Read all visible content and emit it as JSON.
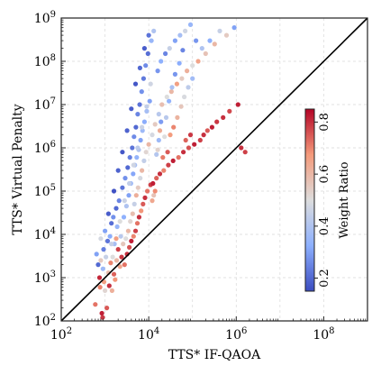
{
  "chart_data": {
    "type": "scatter",
    "title": "",
    "xlabel": "TTS* IF-QAOA",
    "ylabel": "TTS* Virtual Penalty",
    "xscale": "log",
    "yscale": "log",
    "xlim": [
      100,
      1000000000
    ],
    "ylim": [
      100,
      1000000000
    ],
    "x_ticks": [
      {
        "value": 100,
        "base": "10",
        "exp": "2"
      },
      {
        "value": 10000,
        "base": "10",
        "exp": "4"
      },
      {
        "value": 1000000,
        "base": "10",
        "exp": "6"
      },
      {
        "value": 100000000,
        "base": "10",
        "exp": "8"
      }
    ],
    "y_ticks": [
      {
        "value": 100,
        "base": "10",
        "exp": "2"
      },
      {
        "value": 1000,
        "base": "10",
        "exp": "3"
      },
      {
        "value": 10000,
        "base": "10",
        "exp": "4"
      },
      {
        "value": 100000,
        "base": "10",
        "exp": "5"
      },
      {
        "value": 1000000,
        "base": "10",
        "exp": "6"
      },
      {
        "value": 10000000,
        "base": "10",
        "exp": "7"
      },
      {
        "value": 100000000,
        "base": "10",
        "exp": "8"
      },
      {
        "value": 1000000000,
        "base": "10",
        "exp": "9"
      }
    ],
    "grid": true,
    "reference_line": "y = x",
    "colorbar": {
      "label": "Weight Ratio",
      "colormap": "coolwarm",
      "range": [
        0.15,
        0.85
      ],
      "ticks": [
        {
          "value": 0.2,
          "label": "0.2"
        },
        {
          "value": 0.4,
          "label": "0.4"
        },
        {
          "value": 0.6,
          "label": "0.6"
        },
        {
          "value": 0.8,
          "label": "0.8"
        }
      ],
      "colors": [
        "#3b4cc0",
        "#8db0fe",
        "#dddddd",
        "#f49a7b",
        "#b40426"
      ]
    },
    "points": [
      [
        600,
        240,
        0.72
      ],
      [
        640,
        3500,
        0.3
      ],
      [
        700,
        2000,
        0.2
      ],
      [
        750,
        1000,
        0.81
      ],
      [
        770,
        600,
        0.7
      ],
      [
        800,
        2500,
        0.55
      ],
      [
        850,
        150,
        0.82
      ],
      [
        880,
        120,
        0.79
      ],
      [
        900,
        1600,
        0.36
      ],
      [
        930,
        4500,
        0.24
      ],
      [
        950,
        800,
        0.66
      ],
      [
        1000,
        12000,
        0.3
      ],
      [
        1050,
        3000,
        0.45
      ],
      [
        1100,
        200,
        0.75
      ],
      [
        1150,
        7000,
        0.22
      ],
      [
        1200,
        1300,
        0.58
      ],
      [
        1250,
        650,
        0.8
      ],
      [
        1300,
        9000,
        0.32
      ],
      [
        1350,
        2200,
        0.7
      ],
      [
        1400,
        18000,
        0.21
      ],
      [
        1450,
        500,
        0.62
      ],
      [
        1500,
        3000,
        0.5
      ],
      [
        1550,
        25000,
        0.27
      ],
      [
        1600,
        1200,
        0.74
      ],
      [
        1650,
        6000,
        0.38
      ],
      [
        1700,
        900,
        0.68
      ],
      [
        1800,
        40000,
        0.2
      ],
      [
        1850,
        2500,
        0.6
      ],
      [
        1900,
        15000,
        0.35
      ],
      [
        2000,
        4500,
        0.78
      ],
      [
        2100,
        60000,
        0.25
      ],
      [
        2200,
        1800,
        0.64
      ],
      [
        2300,
        9000,
        0.42
      ],
      [
        2400,
        3000,
        0.79
      ],
      [
        2500,
        120000,
        0.22
      ],
      [
        2600,
        6000,
        0.56
      ],
      [
        2700,
        25000,
        0.33
      ],
      [
        2800,
        2000,
        0.72
      ],
      [
        2900,
        200000,
        0.27
      ],
      [
        3000,
        8000,
        0.5
      ],
      [
        3100,
        45000,
        0.4
      ],
      [
        3200,
        3500,
        0.8
      ],
      [
        3300,
        350000,
        0.2
      ],
      [
        3400,
        12000,
        0.6
      ],
      [
        3500,
        80000,
        0.3
      ],
      [
        3600,
        5000,
        0.76
      ],
      [
        3700,
        600000,
        0.24
      ],
      [
        3800,
        20000,
        0.52
      ],
      [
        3900,
        150000,
        0.36
      ],
      [
        4000,
        7000,
        0.82
      ],
      [
        4200,
        1000000,
        0.22
      ],
      [
        4300,
        30000,
        0.58
      ],
      [
        4400,
        250000,
        0.31
      ],
      [
        4500,
        9000,
        0.7
      ],
      [
        4600,
        1800000,
        0.26
      ],
      [
        4700,
        50000,
        0.45
      ],
      [
        4800,
        400000,
        0.38
      ],
      [
        5000,
        12000,
        0.78
      ],
      [
        5100,
        3000000,
        0.2
      ],
      [
        5200,
        80000,
        0.62
      ],
      [
        5300,
        600000,
        0.34
      ],
      [
        5500,
        18000,
        0.72
      ],
      [
        5600,
        6000000,
        0.25
      ],
      [
        5700,
        120000,
        0.55
      ],
      [
        5900,
        900000,
        0.4
      ],
      [
        6000,
        25000,
        0.8
      ],
      [
        6200,
        10000000,
        0.22
      ],
      [
        6400,
        200000,
        0.48
      ],
      [
        6500,
        1500000,
        0.3
      ],
      [
        6700,
        35000,
        0.68
      ],
      [
        6900,
        20000000,
        0.27
      ],
      [
        7000,
        300000,
        0.6
      ],
      [
        7200,
        2500000,
        0.36
      ],
      [
        7400,
        50000,
        0.75
      ],
      [
        7600,
        40000000,
        0.23
      ],
      [
        7800,
        500000,
        0.44
      ],
      [
        8000,
        4000000,
        0.32
      ],
      [
        8200,
        70000,
        0.8
      ],
      [
        8500,
        80000000,
        0.26
      ],
      [
        8700,
        800000,
        0.52
      ],
      [
        9000,
        7000000,
        0.38
      ],
      [
        9300,
        100000,
        0.72
      ],
      [
        9600,
        150000000,
        0.21
      ],
      [
        10000,
        1200000,
        0.6
      ],
      [
        10500,
        12000000,
        0.3
      ],
      [
        11000,
        140000,
        0.78
      ],
      [
        11500,
        300000000,
        0.35
      ],
      [
        12000,
        2000000,
        0.48
      ],
      [
        12500,
        150000,
        0.82
      ],
      [
        13000,
        500000000,
        0.4
      ],
      [
        14000,
        3500000,
        0.55
      ],
      [
        15000,
        200000,
        0.74
      ],
      [
        16000,
        60000000,
        0.28
      ],
      [
        17000,
        6000000,
        0.42
      ],
      [
        18000,
        250000,
        0.8
      ],
      [
        19000,
        100000000,
        0.33
      ],
      [
        20000,
        10000000,
        0.58
      ],
      [
        22000,
        300000,
        0.7
      ],
      [
        24000,
        150000000,
        0.25
      ],
      [
        26000,
        15000000,
        0.5
      ],
      [
        28000,
        400000,
        0.78
      ],
      [
        30000,
        200000000,
        0.45
      ],
      [
        33000,
        20000000,
        0.6
      ],
      [
        36000,
        500000,
        0.82
      ],
      [
        40000,
        300000000,
        0.3
      ],
      [
        44000,
        30000000,
        0.66
      ],
      [
        48000,
        600000,
        0.72
      ],
      [
        52000,
        400000000,
        0.38
      ],
      [
        57000,
        40000000,
        0.55
      ],
      [
        62000,
        800000,
        0.8
      ],
      [
        68000,
        500000000,
        0.47
      ],
      [
        75000,
        60000000,
        0.62
      ],
      [
        82000,
        1000000,
        0.76
      ],
      [
        90000,
        700000000,
        0.35
      ],
      [
        100000,
        80000000,
        0.5
      ],
      [
        110000,
        1200000,
        0.82
      ],
      [
        120000,
        300000000,
        0.28
      ],
      [
        135000,
        100000000,
        0.65
      ],
      [
        150000,
        1500000,
        0.78
      ],
      [
        165000,
        200000000,
        0.4
      ],
      [
        180000,
        2000000,
        0.8
      ],
      [
        200000,
        150000000,
        0.57
      ],
      [
        220000,
        2500000,
        0.75
      ],
      [
        250000,
        300000000,
        0.33
      ],
      [
        280000,
        3000000,
        0.82
      ],
      [
        320000,
        250000000,
        0.6
      ],
      [
        360000,
        4000000,
        0.79
      ],
      [
        420000,
        500000000,
        0.45
      ],
      [
        500000,
        5000000,
        0.8
      ],
      [
        600000,
        400000000,
        0.55
      ],
      [
        700000,
        7000000,
        0.77
      ],
      [
        900000,
        600000000,
        0.3
      ],
      [
        1100000,
        10000000,
        0.82
      ],
      [
        1300000,
        1000000,
        0.8
      ],
      [
        1600000,
        800000,
        0.78
      ],
      [
        800,
        8000,
        0.48
      ],
      [
        1000,
        500,
        0.52
      ],
      [
        1200,
        30000,
        0.18
      ],
      [
        1400,
        6000,
        0.45
      ],
      [
        1600,
        100000,
        0.16
      ],
      [
        1800,
        8000,
        0.66
      ],
      [
        2000,
        300000,
        0.19
      ],
      [
        2200,
        20000,
        0.5
      ],
      [
        2500,
        800000,
        0.17
      ],
      [
        2800,
        60000,
        0.46
      ],
      [
        3200,
        2500000,
        0.19
      ],
      [
        3600,
        150000,
        0.44
      ],
      [
        4000,
        8000000,
        0.18
      ],
      [
        4500,
        400000,
        0.47
      ],
      [
        5000,
        30000000,
        0.17
      ],
      [
        5600,
        1000000,
        0.43
      ],
      [
        6300,
        70000000,
        0.2
      ],
      [
        7000,
        3000000,
        0.46
      ],
      [
        8000,
        200000000,
        0.18
      ],
      [
        9000,
        9000000,
        0.44
      ],
      [
        10000,
        400000000,
        0.22
      ],
      [
        11000,
        30000000,
        0.47
      ],
      [
        12000,
        60000,
        0.64
      ],
      [
        13000,
        80000,
        0.57
      ],
      [
        14000,
        100000,
        0.69
      ],
      [
        15000,
        700000,
        0.41
      ],
      [
        16000,
        900000,
        0.53
      ],
      [
        17000,
        1500000,
        0.36
      ],
      [
        18000,
        2500000,
        0.63
      ],
      [
        19000,
        4000000,
        0.29
      ],
      [
        21000,
        600000,
        0.71
      ],
      [
        23000,
        1800000,
        0.5
      ],
      [
        25000,
        5000000,
        0.42
      ],
      [
        27000,
        800000,
        0.75
      ],
      [
        29000,
        12000000,
        0.34
      ],
      [
        31000,
        2000000,
        0.67
      ],
      [
        34000,
        25000000,
        0.39
      ],
      [
        37000,
        3000000,
        0.7
      ],
      [
        40000,
        50000000,
        0.28
      ],
      [
        45000,
        5000000,
        0.61
      ],
      [
        50000,
        90000000,
        0.32
      ],
      [
        55000,
        9000000,
        0.56
      ],
      [
        60000,
        180000000,
        0.25
      ],
      [
        65000,
        15000000,
        0.49
      ],
      [
        70000,
        1500000,
        0.74
      ],
      [
        80000,
        25000000,
        0.43
      ],
      [
        90000,
        2000000,
        0.79
      ],
      [
        100000,
        40000000,
        0.37
      ]
    ]
  }
}
